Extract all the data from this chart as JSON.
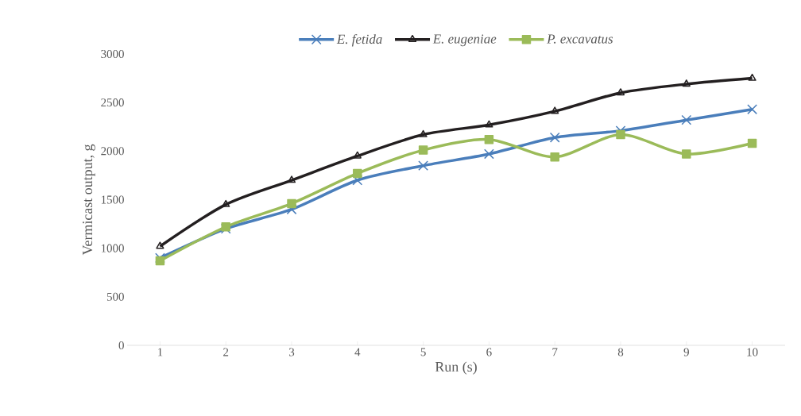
{
  "chart_data": {
    "type": "line",
    "xlabel": "Run (s)",
    "ylabel": "Vermicast output, g",
    "categories": [
      "1",
      "2",
      "3",
      "4",
      "5",
      "6",
      "7",
      "8",
      "9",
      "10"
    ],
    "series": [
      {
        "name": "E. fetida",
        "color": "#4a7ebb",
        "marker": "cross",
        "values": [
          900,
          1200,
          1400,
          1700,
          1850,
          1970,
          2140,
          2210,
          2320,
          2430
        ]
      },
      {
        "name": "E. eugeniae",
        "color": "#231f20",
        "marker": "triangle",
        "values": [
          1020,
          1450,
          1700,
          1950,
          2170,
          2270,
          2410,
          2600,
          2690,
          2750
        ]
      },
      {
        "name": "P. excavatus",
        "color": "#9bbb59",
        "marker": "square",
        "values": [
          870,
          1220,
          1460,
          1770,
          2010,
          2120,
          1940,
          2170,
          1970,
          2080
        ]
      }
    ],
    "ylim": [
      0,
      3000
    ],
    "yticks": [
      0,
      500,
      1000,
      1500,
      2000,
      2500,
      3000
    ],
    "grid": false,
    "legend": "top"
  }
}
